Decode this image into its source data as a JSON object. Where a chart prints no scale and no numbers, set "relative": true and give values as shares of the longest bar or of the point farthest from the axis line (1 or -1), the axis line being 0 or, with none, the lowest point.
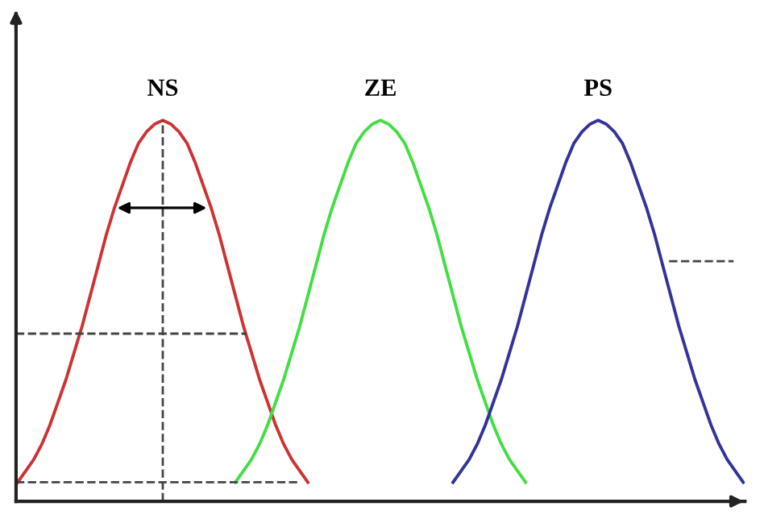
{
  "chart_data": {
    "type": "line",
    "relative": true,
    "marker": "none",
    "line_style": "solid",
    "categories": [
      null,
      null,
      null,
      null,
      null,
      null,
      null,
      null,
      null,
      null,
      null,
      null,
      null,
      null,
      null,
      null,
      null,
      null,
      null,
      null,
      null,
      null,
      null,
      null,
      null,
      null,
      null,
      null,
      null,
      null,
      null,
      null,
      null,
      null,
      null,
      null,
      null,
      null,
      null,
      null,
      null,
      null,
      null,
      null,
      null,
      null,
      null,
      null,
      null,
      null,
      null,
      null,
      null,
      null,
      null,
      null,
      null,
      null,
      null,
      null,
      null,
      null,
      null,
      null,
      null,
      null,
      null,
      null,
      null,
      null,
      null,
      null,
      null,
      null,
      null,
      null,
      null,
      null,
      null,
      null,
      null,
      null,
      null,
      null,
      null,
      null,
      null,
      null,
      null,
      null,
      null
    ],
    "annotations": [
      "NS",
      "ZE",
      "PS"
    ],
    "series": [
      {
        "color": "#cc3333",
        "values": [
          0.05,
          0.08,
          0.11,
          0.15,
          0.2,
          0.26,
          0.32,
          0.39,
          0.46,
          0.54,
          0.62,
          0.7,
          0.77,
          0.83,
          0.89,
          0.94,
          0.97,
          0.99,
          1,
          0.99,
          0.97,
          0.94,
          0.89,
          0.83,
          0.77,
          0.7,
          0.62,
          0.54,
          0.46,
          0.39,
          0.32,
          0.26,
          0.2,
          0.15,
          0.11,
          0.08,
          0.05,
          null,
          null,
          null,
          null,
          null,
          null,
          null,
          null,
          null,
          null,
          null,
          null,
          null,
          null,
          null,
          null,
          null,
          null,
          null,
          null,
          null,
          null,
          null,
          null,
          null,
          null,
          null,
          null,
          null,
          null,
          null,
          null,
          null,
          null,
          null,
          null,
          null,
          null,
          null,
          null,
          null,
          null,
          null,
          null,
          null,
          null,
          null,
          null,
          null,
          null,
          null,
          null,
          null,
          null
        ]
      },
      {
        "color": "#44dd44",
        "values": [
          null,
          null,
          null,
          null,
          null,
          null,
          null,
          null,
          null,
          null,
          null,
          null,
          null,
          null,
          null,
          null,
          null,
          null,
          null,
          null,
          null,
          null,
          null,
          null,
          null,
          null,
          null,
          0.05,
          0.08,
          0.11,
          0.15,
          0.2,
          0.26,
          0.32,
          0.39,
          0.46,
          0.54,
          0.62,
          0.7,
          0.77,
          0.83,
          0.89,
          0.94,
          0.97,
          0.99,
          1,
          0.99,
          0.97,
          0.94,
          0.89,
          0.83,
          0.77,
          0.7,
          0.62,
          0.54,
          0.46,
          0.39,
          0.32,
          0.26,
          0.2,
          0.15,
          0.11,
          0.08,
          0.05,
          null,
          null,
          null,
          null,
          null,
          null,
          null,
          null,
          null,
          null,
          null,
          null,
          null,
          null,
          null,
          null,
          null,
          null,
          null,
          null,
          null,
          null,
          null,
          null,
          null,
          null,
          null
        ]
      },
      {
        "color": "#333399",
        "values": [
          null,
          null,
          null,
          null,
          null,
          null,
          null,
          null,
          null,
          null,
          null,
          null,
          null,
          null,
          null,
          null,
          null,
          null,
          null,
          null,
          null,
          null,
          null,
          null,
          null,
          null,
          null,
          null,
          null,
          null,
          null,
          null,
          null,
          null,
          null,
          null,
          null,
          null,
          null,
          null,
          null,
          null,
          null,
          null,
          null,
          null,
          null,
          null,
          null,
          null,
          null,
          null,
          null,
          null,
          0.05,
          0.08,
          0.11,
          0.15,
          0.2,
          0.26,
          0.32,
          0.39,
          0.46,
          0.54,
          0.62,
          0.7,
          0.77,
          0.83,
          0.89,
          0.94,
          0.97,
          0.99,
          1,
          0.99,
          0.97,
          0.94,
          0.89,
          0.83,
          0.77,
          0.7,
          0.62,
          0.54,
          0.46,
          0.39,
          0.32,
          0.26,
          0.2,
          0.15,
          0.11,
          0.08,
          0.05
        ]
      }
    ]
  }
}
